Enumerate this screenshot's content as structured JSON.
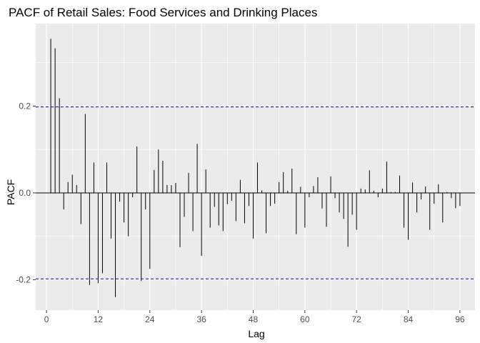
{
  "chart_data": {
    "type": "bar",
    "title": "PACF of Retail Sales: Food Services and Drinking Places",
    "xlabel": "Lag",
    "ylabel": "PACF",
    "xlim": [
      -2.5,
      99.5
    ],
    "ylim": [
      -0.27,
      0.39
    ],
    "x_ticks": [
      0,
      12,
      24,
      36,
      48,
      60,
      72,
      84,
      96
    ],
    "x_tick_labels": [
      "0",
      "12",
      "24",
      "36",
      "48",
      "60",
      "72",
      "84",
      "96"
    ],
    "y_ticks": [
      -0.2,
      0.0,
      0.2
    ],
    "y_tick_labels": [
      "-0.2",
      "0.0",
      "0.2"
    ],
    "confidence_bound": 0.198,
    "grid": true,
    "background": "#ebebeb",
    "grid_color": "#ffffff",
    "bar_color": "#000000",
    "bound_color": "#0000cc",
    "lags": [
      1,
      2,
      3,
      4,
      5,
      6,
      7,
      8,
      9,
      10,
      11,
      12,
      13,
      14,
      15,
      16,
      17,
      18,
      19,
      20,
      21,
      22,
      23,
      24,
      25,
      26,
      27,
      28,
      29,
      30,
      31,
      32,
      33,
      34,
      35,
      36,
      37,
      38,
      39,
      40,
      41,
      42,
      43,
      44,
      45,
      46,
      47,
      48,
      49,
      50,
      51,
      52,
      53,
      54,
      55,
      56,
      57,
      58,
      59,
      60,
      61,
      62,
      63,
      64,
      65,
      66,
      67,
      68,
      69,
      70,
      71,
      72,
      73,
      74,
      75,
      76,
      77,
      78,
      79,
      80,
      81,
      82,
      83,
      84,
      85,
      86,
      87,
      88,
      89,
      90,
      91,
      92,
      93,
      94,
      95,
      96
    ],
    "values": [
      0.355,
      0.333,
      0.218,
      -0.038,
      0.025,
      0.042,
      0.018,
      -0.072,
      0.182,
      -0.212,
      0.07,
      -0.208,
      -0.185,
      0.07,
      -0.105,
      -0.24,
      -0.02,
      -0.068,
      -0.1,
      -0.01,
      0.107,
      -0.203,
      -0.038,
      -0.175,
      0.053,
      0.1,
      0.074,
      0.018,
      0.018,
      0.023,
      -0.125,
      -0.055,
      0.046,
      -0.088,
      0.113,
      -0.145,
      0.054,
      -0.08,
      -0.032,
      -0.075,
      -0.088,
      -0.026,
      -0.018,
      -0.065,
      0.03,
      -0.07,
      -0.03,
      -0.105,
      0.07,
      0.006,
      -0.093,
      -0.03,
      -0.025,
      0.025,
      0.048,
      0.005,
      0.056,
      -0.095,
      0.014,
      -0.08,
      -0.01,
      0.016,
      0.036,
      -0.036,
      -0.078,
      0.038,
      -0.012,
      -0.045,
      -0.06,
      -0.124,
      -0.05,
      -0.085,
      0.01,
      0.008,
      0.052,
      0.005,
      -0.01,
      0.01,
      0.072,
      0.002,
      0.002,
      0.04,
      -0.08,
      -0.108,
      0.024,
      -0.045,
      -0.015,
      0.015,
      -0.085,
      -0.025,
      0.02,
      -0.068,
      0.002,
      -0.012,
      -0.035,
      -0.03
    ]
  }
}
